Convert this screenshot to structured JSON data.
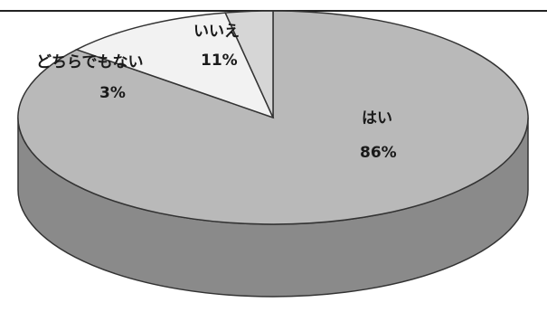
{
  "chart_data": {
    "type": "pie",
    "style": "3d",
    "title": "",
    "categories": [
      "はい",
      "いいえ",
      "どちらでもない"
    ],
    "values": [
      86,
      11,
      3
    ],
    "value_labels": [
      "86%",
      "11%",
      "3%"
    ],
    "colors": [
      "#b9b9b9",
      "#f2f2f2",
      "#d6d6d6"
    ],
    "side_color": "#8a8a8a",
    "legend": "none"
  }
}
